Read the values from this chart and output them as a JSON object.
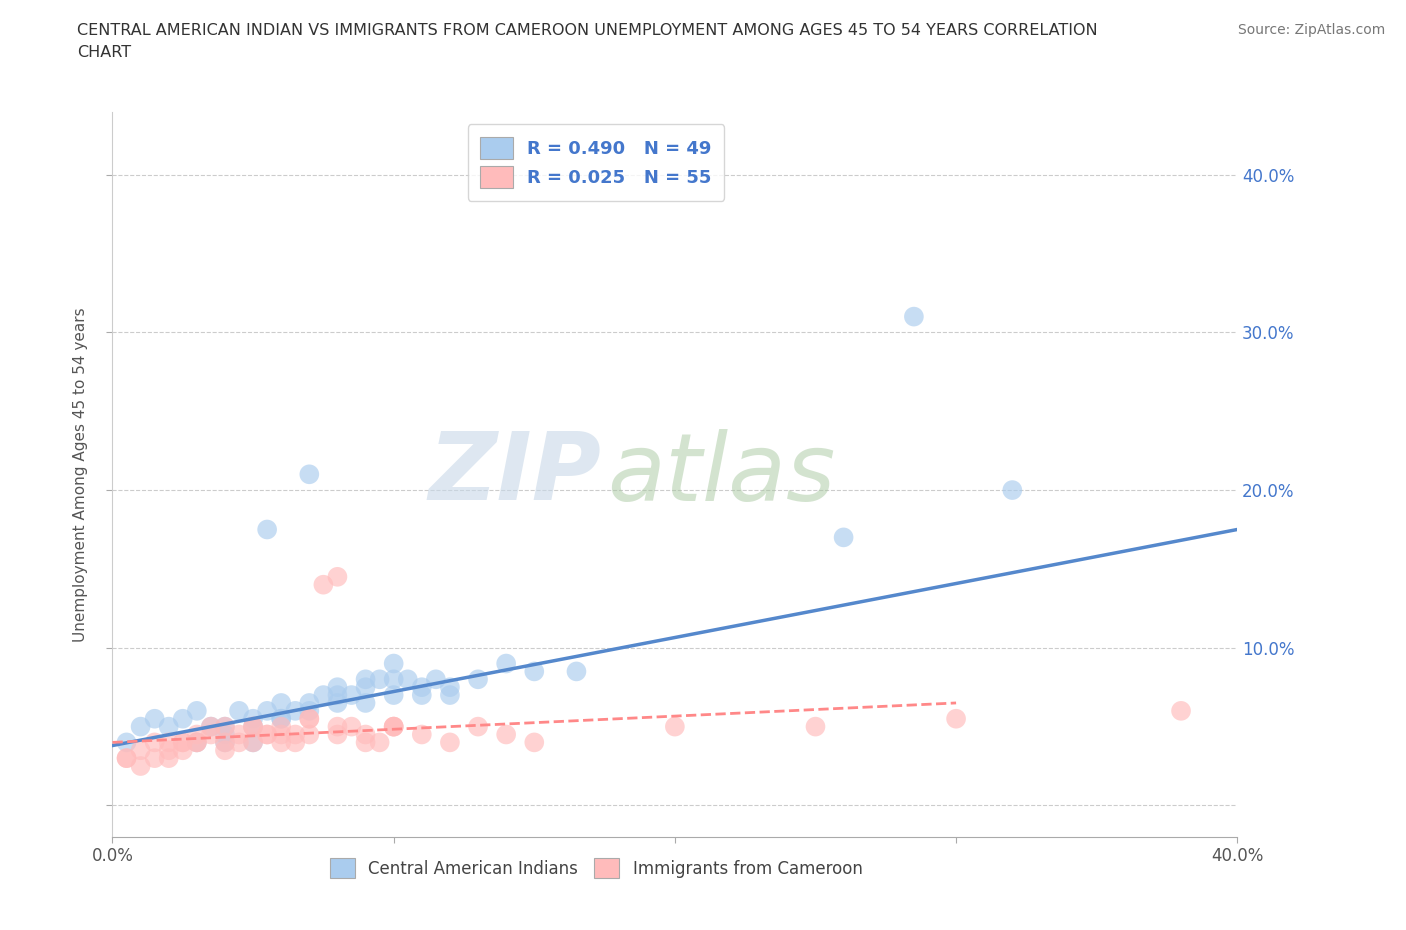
{
  "title_line1": "CENTRAL AMERICAN INDIAN VS IMMIGRANTS FROM CAMEROON UNEMPLOYMENT AMONG AGES 45 TO 54 YEARS CORRELATION",
  "title_line2": "CHART",
  "source": "Source: ZipAtlas.com",
  "ylabel": "Unemployment Among Ages 45 to 54 years",
  "xlim": [
    0.0,
    0.4
  ],
  "ylim": [
    -0.02,
    0.44
  ],
  "xticks": [
    0.0,
    0.1,
    0.2,
    0.3,
    0.4
  ],
  "yticks": [
    0.0,
    0.1,
    0.2,
    0.3,
    0.4
  ],
  "xtick_labels_left": [
    "0.0%",
    "",
    "",
    "",
    ""
  ],
  "xtick_labels_right": "40.0%",
  "ytick_right_labels": [
    "",
    "10.0%",
    "20.0%",
    "30.0%",
    "40.0%"
  ],
  "grid_color": "#cccccc",
  "watermark_zip": "ZIP",
  "watermark_atlas": "atlas",
  "legend_R1": "R = 0.490",
  "legend_N1": "N = 49",
  "legend_R2": "R = 0.025",
  "legend_N2": "N = 55",
  "color_blue": "#aaccee",
  "color_pink": "#ffbbbb",
  "color_blue_line": "#5588cc",
  "color_pink_line": "#ff8888",
  "color_text_blue": "#4477cc",
  "blue_scatter_x": [
    0.005,
    0.01,
    0.015,
    0.02,
    0.025,
    0.03,
    0.035,
    0.04,
    0.045,
    0.05,
    0.055,
    0.06,
    0.065,
    0.07,
    0.075,
    0.08,
    0.085,
    0.09,
    0.095,
    0.1,
    0.105,
    0.11,
    0.115,
    0.12,
    0.13,
    0.14,
    0.15,
    0.04,
    0.05,
    0.06,
    0.07,
    0.08,
    0.09,
    0.1,
    0.11,
    0.12,
    0.03,
    0.04,
    0.05,
    0.06,
    0.08,
    0.09,
    0.1,
    0.07,
    0.055,
    0.165,
    0.26,
    0.285,
    0.32
  ],
  "blue_scatter_y": [
    0.04,
    0.05,
    0.055,
    0.05,
    0.055,
    0.06,
    0.05,
    0.05,
    0.06,
    0.055,
    0.06,
    0.065,
    0.06,
    0.065,
    0.07,
    0.07,
    0.07,
    0.075,
    0.08,
    0.07,
    0.08,
    0.07,
    0.08,
    0.075,
    0.08,
    0.09,
    0.085,
    0.04,
    0.05,
    0.055,
    0.06,
    0.075,
    0.08,
    0.09,
    0.075,
    0.07,
    0.04,
    0.045,
    0.04,
    0.055,
    0.065,
    0.065,
    0.08,
    0.21,
    0.175,
    0.085,
    0.17,
    0.31,
    0.2
  ],
  "pink_scatter_x": [
    0.005,
    0.01,
    0.015,
    0.02,
    0.025,
    0.03,
    0.035,
    0.04,
    0.045,
    0.05,
    0.055,
    0.06,
    0.065,
    0.07,
    0.075,
    0.08,
    0.085,
    0.09,
    0.095,
    0.1,
    0.02,
    0.025,
    0.03,
    0.035,
    0.04,
    0.045,
    0.05,
    0.055,
    0.06,
    0.065,
    0.07,
    0.005,
    0.01,
    0.015,
    0.02,
    0.025,
    0.03,
    0.04,
    0.05,
    0.06,
    0.07,
    0.08,
    0.09,
    0.1,
    0.11,
    0.12,
    0.13,
    0.14,
    0.08,
    0.1,
    0.15,
    0.2,
    0.25,
    0.3,
    0.38
  ],
  "pink_scatter_y": [
    0.03,
    0.035,
    0.04,
    0.04,
    0.04,
    0.045,
    0.05,
    0.04,
    0.045,
    0.05,
    0.045,
    0.05,
    0.045,
    0.055,
    0.14,
    0.145,
    0.05,
    0.045,
    0.04,
    0.05,
    0.035,
    0.04,
    0.04,
    0.045,
    0.05,
    0.04,
    0.05,
    0.045,
    0.045,
    0.04,
    0.055,
    0.03,
    0.025,
    0.03,
    0.03,
    0.035,
    0.04,
    0.035,
    0.04,
    0.04,
    0.045,
    0.045,
    0.04,
    0.05,
    0.045,
    0.04,
    0.05,
    0.045,
    0.05,
    0.05,
    0.04,
    0.05,
    0.05,
    0.055,
    0.06
  ],
  "blue_line_x": [
    0.0,
    0.4
  ],
  "blue_line_y": [
    0.038,
    0.175
  ],
  "pink_line_x": [
    0.0,
    0.3
  ],
  "pink_line_y": [
    0.04,
    0.065
  ],
  "bg_color": "#ffffff"
}
